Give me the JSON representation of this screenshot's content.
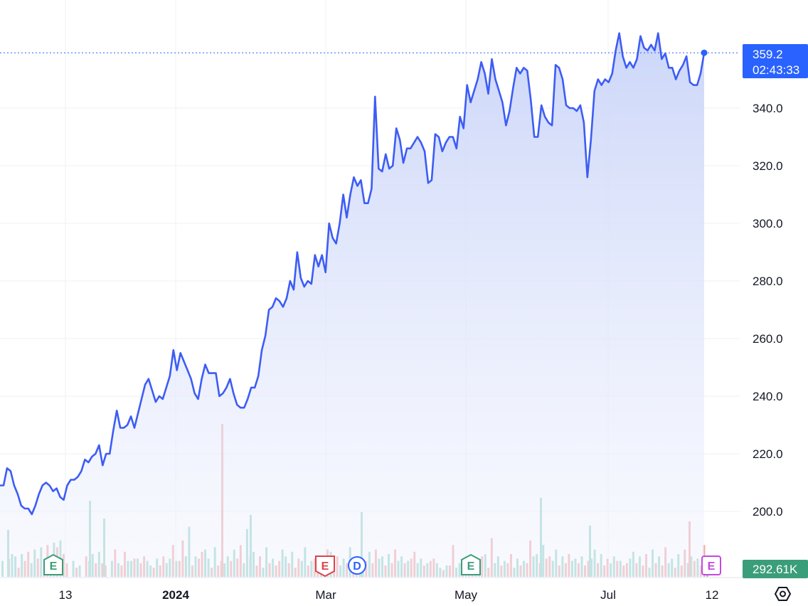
{
  "chart_data": {
    "type": "area",
    "title": "",
    "xlabel": "",
    "ylabel": "",
    "ylim": [
      186,
      364
    ],
    "grid": true,
    "y_ticks": [
      "340.0",
      "320.0",
      "300.0",
      "280.0",
      "260.0",
      "240.0",
      "220.0",
      "200.0"
    ],
    "x_ticks": [
      {
        "label": "13",
        "bold": false
      },
      {
        "label": "2024",
        "bold": true
      },
      {
        "label": "Mar",
        "bold": false
      },
      {
        "label": "May",
        "bold": false
      },
      {
        "label": "Jul",
        "bold": false
      },
      {
        "label": "12",
        "bold": false
      }
    ],
    "last_price": {
      "value": 359.2,
      "label": "359.2",
      "countdown": "02:43:33"
    },
    "volume_label": "292.61K",
    "colors": {
      "line": "#3d5cf5",
      "area_top": "#c9d4f8",
      "area_bottom": "#f3f5fe",
      "volume_up": "#93d2c8",
      "volume_down": "#eea8a8",
      "price_tag": "#2962ff",
      "volume_tag": "#3b9e7a",
      "grid": "#eef0f3",
      "earnings_past": "#3b9e7a",
      "earnings_red": "#d9454a",
      "dividend": "#2962ff",
      "earnings_future": "#c447e0"
    },
    "events": [
      {
        "type": "E",
        "state": "past",
        "x": 23
      },
      {
        "type": "E",
        "state": "red",
        "x": 111
      },
      {
        "type": "D",
        "state": "dividend",
        "x": 122
      },
      {
        "type": "E",
        "state": "past",
        "x": 160
      },
      {
        "type": "E",
        "state": "future",
        "x": 246
      }
    ],
    "series": [
      {
        "values": [
          [
            0,
            209
          ],
          [
            1,
            209
          ],
          [
            2,
            215
          ],
          [
            3,
            214
          ],
          [
            4,
            209
          ],
          [
            5,
            206
          ],
          [
            6,
            202
          ],
          [
            7,
            201
          ],
          [
            8,
            201
          ],
          [
            9,
            199
          ],
          [
            10,
            202
          ],
          [
            11,
            206
          ],
          [
            12,
            209
          ],
          [
            13,
            210
          ],
          [
            14,
            209
          ],
          [
            15,
            207
          ],
          [
            16,
            208
          ],
          [
            17,
            205
          ],
          [
            18,
            204
          ],
          [
            19,
            209
          ],
          [
            20,
            211
          ],
          [
            21,
            211
          ],
          [
            22,
            212
          ],
          [
            23,
            214
          ],
          [
            24,
            218
          ],
          [
            25,
            217
          ],
          [
            26,
            219
          ],
          [
            27,
            220
          ],
          [
            28,
            223
          ],
          [
            29,
            216
          ],
          [
            30,
            220
          ],
          [
            31,
            220
          ],
          [
            32,
            228
          ],
          [
            33,
            235
          ],
          [
            34,
            229
          ],
          [
            35,
            229
          ],
          [
            36,
            230
          ],
          [
            37,
            233
          ],
          [
            38,
            229
          ],
          [
            39,
            234
          ],
          [
            40,
            239
          ],
          [
            41,
            244
          ],
          [
            42,
            246
          ],
          [
            43,
            242
          ],
          [
            44,
            238
          ],
          [
            45,
            240
          ],
          [
            46,
            239
          ],
          [
            47,
            243
          ],
          [
            48,
            247
          ],
          [
            49,
            256
          ],
          [
            50,
            249
          ],
          [
            51,
            255
          ],
          [
            52,
            252
          ],
          [
            53,
            249
          ],
          [
            54,
            246
          ],
          [
            55,
            241
          ],
          [
            56,
            239
          ],
          [
            57,
            246
          ],
          [
            58,
            251
          ],
          [
            59,
            248
          ],
          [
            60,
            248
          ],
          [
            61,
            248
          ],
          [
            62,
            240
          ],
          [
            63,
            241
          ],
          [
            64,
            243
          ],
          [
            65,
            246
          ],
          [
            66,
            241
          ],
          [
            67,
            237
          ],
          [
            68,
            236
          ],
          [
            69,
            236
          ],
          [
            70,
            239
          ],
          [
            71,
            243
          ],
          [
            72,
            243
          ],
          [
            73,
            247
          ],
          [
            74,
            256
          ],
          [
            75,
            261
          ],
          [
            76,
            270
          ],
          [
            77,
            271
          ],
          [
            78,
            274
          ],
          [
            79,
            273
          ],
          [
            80,
            271
          ],
          [
            81,
            274
          ],
          [
            82,
            280
          ],
          [
            83,
            277
          ],
          [
            84,
            290
          ],
          [
            85,
            281
          ],
          [
            86,
            278
          ],
          [
            87,
            280
          ],
          [
            88,
            279
          ],
          [
            89,
            289
          ],
          [
            90,
            285
          ],
          [
            91,
            289
          ],
          [
            92,
            283
          ],
          [
            93,
            300
          ],
          [
            94,
            295
          ],
          [
            95,
            293
          ],
          [
            96,
            300
          ],
          [
            97,
            310
          ],
          [
            98,
            302
          ],
          [
            99,
            310
          ],
          [
            100,
            316
          ],
          [
            101,
            313
          ],
          [
            102,
            315
          ],
          [
            103,
            307
          ],
          [
            104,
            307
          ],
          [
            105,
            312
          ],
          [
            106,
            344
          ],
          [
            107,
            319
          ],
          [
            108,
            318
          ],
          [
            109,
            324
          ],
          [
            110,
            319
          ],
          [
            111,
            320
          ],
          [
            112,
            333
          ],
          [
            113,
            329
          ],
          [
            114,
            321
          ],
          [
            115,
            326
          ],
          [
            116,
            326
          ],
          [
            117,
            328
          ],
          [
            118,
            330
          ],
          [
            119,
            328
          ],
          [
            120,
            325
          ],
          [
            121,
            314
          ],
          [
            122,
            315
          ],
          [
            123,
            331
          ],
          [
            124,
            330
          ],
          [
            125,
            325
          ],
          [
            126,
            328
          ],
          [
            127,
            330
          ],
          [
            128,
            330
          ],
          [
            129,
            326
          ],
          [
            130,
            337
          ],
          [
            131,
            333
          ],
          [
            132,
            348
          ],
          [
            133,
            342
          ],
          [
            134,
            346
          ],
          [
            135,
            350
          ],
          [
            136,
            356
          ],
          [
            137,
            352
          ],
          [
            138,
            345
          ],
          [
            139,
            357
          ],
          [
            140,
            350
          ],
          [
            141,
            346
          ],
          [
            142,
            342
          ],
          [
            143,
            334
          ],
          [
            144,
            339
          ],
          [
            145,
            347
          ],
          [
            146,
            354
          ],
          [
            147,
            352
          ],
          [
            148,
            354
          ],
          [
            149,
            353
          ],
          [
            150,
            343
          ],
          [
            151,
            330
          ],
          [
            152,
            330
          ],
          [
            153,
            341
          ],
          [
            154,
            337
          ],
          [
            155,
            335
          ],
          [
            156,
            334
          ],
          [
            157,
            355
          ],
          [
            158,
            354
          ],
          [
            159,
            350
          ],
          [
            160,
            341
          ],
          [
            161,
            340
          ],
          [
            162,
            340
          ],
          [
            163,
            339
          ],
          [
            164,
            341
          ],
          [
            165,
            335
          ],
          [
            166,
            316
          ],
          [
            167,
            329
          ],
          [
            168,
            346
          ],
          [
            169,
            350
          ],
          [
            170,
            348
          ],
          [
            171,
            350
          ],
          [
            172,
            349
          ],
          [
            173,
            352
          ],
          [
            174,
            360
          ],
          [
            175,
            366
          ],
          [
            176,
            358
          ],
          [
            177,
            354
          ],
          [
            178,
            356
          ],
          [
            179,
            354
          ],
          [
            180,
            357
          ],
          [
            181,
            365
          ],
          [
            182,
            361
          ],
          [
            183,
            360
          ],
          [
            184,
            362
          ],
          [
            185,
            360
          ],
          [
            186,
            366
          ],
          [
            187,
            357
          ],
          [
            188,
            359
          ],
          [
            189,
            354
          ],
          [
            190,
            354
          ],
          [
            191,
            350
          ],
          [
            192,
            353
          ],
          [
            193,
            355
          ],
          [
            194,
            358
          ],
          [
            195,
            349
          ],
          [
            196,
            348
          ],
          [
            197,
            348
          ],
          [
            198,
            352
          ],
          [
            199,
            359.2
          ]
        ]
      }
    ],
    "volume": [
      [
        7,
        0
      ],
      [
        8,
        10
      ],
      [
        9,
        4
      ],
      [
        10,
        7
      ],
      [
        11,
        6
      ],
      [
        12,
        8
      ],
      [
        13,
        3
      ],
      [
        14,
        5
      ],
      [
        15,
        13
      ],
      [
        16,
        10
      ],
      [
        6,
        0
      ],
      [
        7,
        4
      ],
      [
        5,
        0
      ],
      [
        9,
        7
      ],
      [
        10,
        6
      ],
      [
        11,
        6
      ],
      [
        5,
        0
      ],
      [
        7,
        12
      ],
      [
        6,
        5
      ],
      [
        11,
        7
      ],
      [
        7,
        8
      ],
      [
        8,
        6
      ],
      [
        9,
        7
      ],
      [
        5,
        4
      ],
      [
        8,
        5
      ],
      [
        9,
        6
      ],
      [
        8,
        14
      ],
      [
        7,
        7
      ],
      [
        16,
        9
      ],
      [
        22,
        5
      ],
      [
        9,
        8
      ],
      [
        11,
        12
      ],
      [
        8,
        4
      ],
      [
        13,
        5
      ],
      [
        7,
        6
      ],
      [
        9,
        7
      ],
      [
        12,
        8
      ],
      [
        14,
        6
      ],
      [
        21,
        9
      ],
      [
        11,
        5
      ],
      [
        9,
        4
      ],
      [
        13,
        6
      ],
      [
        8,
        5
      ],
      [
        7,
        12
      ],
      [
        9,
        6
      ],
      [
        11,
        4
      ],
      [
        8,
        7
      ],
      [
        13,
        5
      ],
      [
        7,
        8
      ],
      [
        6,
        6
      ],
      [
        7,
        12
      ],
      [
        11,
        7
      ],
      [
        9,
        5
      ],
      [
        8,
        6
      ],
      [
        13,
        5
      ],
      [
        9,
        9
      ],
      [
        8,
        7
      ],
      [
        11,
        6
      ],
      [
        12,
        8
      ],
      [
        9,
        5
      ],
      [
        10,
        6
      ],
      [
        12,
        7
      ],
      [
        9,
        6
      ],
      [
        7,
        8
      ],
      [
        11,
        6
      ],
      [
        8,
        5
      ],
      [
        6,
        7
      ],
      [
        8,
        6
      ],
      [
        4,
        3
      ],
      [
        5,
        5
      ],
      [
        14,
        4
      ],
      [
        6,
        3
      ],
      [
        9,
        8
      ],
      [
        7,
        6
      ],
      [
        7,
        9
      ],
      [
        10,
        4
      ],
      [
        17,
        6
      ],
      [
        9,
        5
      ],
      [
        7,
        6
      ],
      [
        10,
        4
      ],
      [
        8,
        5
      ],
      [
        7,
        6
      ],
      [
        16,
        9
      ],
      [
        10,
        6
      ],
      [
        14,
        8
      ],
      [
        9,
        7
      ],
      [
        12,
        5
      ],
      [
        9,
        6
      ],
      [
        10,
        7
      ],
      [
        8,
        6
      ],
      [
        9,
        5
      ],
      [
        7,
        8
      ],
      [
        12,
        6
      ],
      [
        10,
        5
      ],
      [
        8,
        6
      ],
      [
        9,
        7
      ],
      [
        7,
        5
      ],
      [
        6,
        8
      ],
      [
        11,
        6
      ],
      [
        9,
        5
      ],
      [
        10,
        4
      ],
      [
        12,
        6
      ],
      [
        9,
        5
      ],
      [
        13,
        6
      ],
      [
        8,
        4
      ],
      [
        10,
        5
      ],
      [
        12,
        6
      ],
      [
        9,
        7
      ],
      [
        8,
        5
      ],
      [
        14,
        6
      ]
    ]
  }
}
